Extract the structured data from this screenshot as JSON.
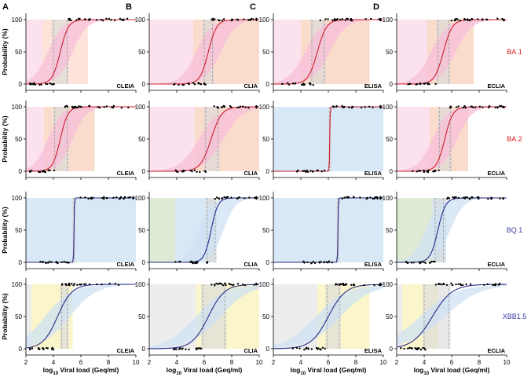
{
  "figure": {
    "y_axis_label": "Probability (%)",
    "x_axis_label_prefix": "log",
    "x_axis_label_sub": "10",
    "x_axis_label_suffix": " Viral load (Geq/ml)",
    "y_ticks": [
      "0",
      "50",
      "100"
    ],
    "x_ticks": [
      "2",
      "4",
      "6",
      "8",
      "10"
    ],
    "columns": [
      {
        "letter": "A"
      },
      {
        "letter": "B"
      },
      {
        "letter": "C"
      },
      {
        "letter": "D"
      }
    ],
    "rows": [
      {
        "variant": "BA.1",
        "color": "#d7191c",
        "curve_color": "#cc1f2f"
      },
      {
        "variant": "BA.2",
        "color": "#d7191c",
        "curve_color": "#cc1f2f"
      },
      {
        "variant": "BQ.1",
        "color": "#3a3aa3",
        "curve_color": "#2a2a8a"
      },
      {
        "variant": "XBB1.5",
        "color": "#3a3aa3",
        "curve_color": "#2a2a8a"
      }
    ]
  },
  "chart_data": {
    "type": "scatter",
    "title": "",
    "xlabel": "log10 Viral load (Geq/ml)",
    "ylabel": "Probability (%)",
    "xlim": [
      2,
      10
    ],
    "ylim": [
      0,
      100
    ],
    "panels": [
      {
        "row": 0,
        "col": 0,
        "assay": "CLEIA",
        "mid": 4.5,
        "slope": 3.4,
        "ci_lo": 4.0,
        "ci_hi": 5.0,
        "band_lo": 3.2,
        "band_hi": 6.5,
        "upper_fill": "#fde0d5",
        "lower_fill": "#fbd9ea",
        "ribbon": "#f7bfd8"
      },
      {
        "row": 0,
        "col": 1,
        "assay": "CLIA",
        "mid": 6.3,
        "slope": 3.3,
        "ci_lo": 6.0,
        "ci_hi": 6.6,
        "band_lo": 5.2,
        "band_hi": 10,
        "upper_fill": "#fad8c8",
        "lower_fill": "#fbd9ea",
        "ribbon": "#f7bfd8"
      },
      {
        "row": 0,
        "col": 2,
        "assay": "ELISA",
        "mid": 5.2,
        "slope": 3.0,
        "ci_lo": 4.8,
        "ci_hi": 5.7,
        "band_lo": 4.0,
        "band_hi": 9.0,
        "upper_fill": "#fad8c8",
        "lower_fill": "#fbd9ea",
        "ribbon": "#f7bfd8"
      },
      {
        "row": 0,
        "col": 3,
        "assay": "ECLIA",
        "mid": 5.4,
        "slope": 3.1,
        "ci_lo": 5.0,
        "ci_hi": 5.8,
        "band_lo": 4.2,
        "band_hi": 7.6,
        "upper_fill": "#fad8c8",
        "lower_fill": "#fbd9ea",
        "ribbon": "#f7bfd8"
      },
      {
        "row": 1,
        "col": 0,
        "assay": "CLEIA",
        "mid": 4.5,
        "slope": 3.6,
        "ci_lo": 4.1,
        "ci_hi": 5.0,
        "band_lo": 3.3,
        "band_hi": 7.0,
        "upper_fill": "#fad8c8",
        "lower_fill": "#fbd9ea",
        "ribbon": "#f7bfd8"
      },
      {
        "row": 1,
        "col": 1,
        "assay": "CLIA",
        "mid": 6.5,
        "slope": 2.6,
        "ci_lo": 6.1,
        "ci_hi": 7.0,
        "band_lo": 5.3,
        "band_hi": 10,
        "upper_fill": "#fad8c8",
        "lower_fill": "#fbd9ea",
        "ribbon": "#f7bfd8"
      },
      {
        "row": 1,
        "col": 2,
        "assay": "ELISA",
        "mid": 6.1,
        "slope": 60,
        "ci_lo": 6.1,
        "ci_hi": 6.1,
        "band_lo": 2,
        "band_hi": 10,
        "upper_fill": "#d4e5f5",
        "lower_fill": "#d6e5c9",
        "ribbon": "none"
      },
      {
        "row": 1,
        "col": 3,
        "assay": "ECLIA",
        "mid": 5.5,
        "slope": 3.4,
        "ci_lo": 5.1,
        "ci_hi": 5.9,
        "band_lo": 4.4,
        "band_hi": 7.2,
        "upper_fill": "#fad8c8",
        "lower_fill": "#fbd9ea",
        "ribbon": "#f7bfd8"
      },
      {
        "row": 2,
        "col": 0,
        "assay": "CLEIA",
        "mid": 5.5,
        "slope": 60,
        "ci_lo": 5.5,
        "ci_hi": 5.5,
        "band_lo": 2,
        "band_hi": 10,
        "upper_fill": "#d4e5f5",
        "lower_fill": "#d6e5c9",
        "ribbon": "none"
      },
      {
        "row": 2,
        "col": 1,
        "assay": "CLIA",
        "mid": 6.5,
        "slope": 4.0,
        "ci_lo": 6.2,
        "ci_hi": 6.8,
        "band_lo": 3.9,
        "band_hi": 6.8,
        "upper_fill": "#d4e5f5",
        "lower_fill": "#d6e5c9",
        "ribbon": "#cfe2f3"
      },
      {
        "row": 2,
        "col": 2,
        "assay": "ELISA",
        "mid": 6.7,
        "slope": 60,
        "ci_lo": 6.7,
        "ci_hi": 6.7,
        "band_lo": 2,
        "band_hi": 10,
        "upper_fill": "#d4e5f5",
        "lower_fill": "#d6e5c9",
        "ribbon": "none"
      },
      {
        "row": 2,
        "col": 3,
        "assay": "ECLIA",
        "mid": 5.0,
        "slope": 3.6,
        "ci_lo": 4.8,
        "ci_hi": 5.4,
        "band_lo": 4.6,
        "band_hi": 5.6,
        "upper_fill": "#d4e5f5",
        "lower_fill": "#d6e5c9",
        "ribbon": "#cfe2f3"
      },
      {
        "row": 3,
        "col": 0,
        "assay": "CLEIA",
        "mid": 4.3,
        "slope": 1.9,
        "ci_lo": 4.6,
        "ci_hi": 5.0,
        "band_lo": 2.4,
        "band_hi": 5.4,
        "upper_fill": "#fbf4c6",
        "lower_fill": "#e8e8e8",
        "ribbon": "#cfe2f3"
      },
      {
        "row": 3,
        "col": 1,
        "assay": "CLIA",
        "mid": 6.3,
        "slope": 1.7,
        "ci_lo": 5.9,
        "ci_hi": 7.5,
        "band_lo": 5.4,
        "band_hi": 10,
        "upper_fill": "#fbf4c6",
        "lower_fill": "#e8e8e8",
        "ribbon": "#cfe2f3"
      },
      {
        "row": 3,
        "col": 2,
        "assay": "ELISA",
        "mid": 6.0,
        "slope": 1.6,
        "ci_lo": 5.9,
        "ci_hi": 6.8,
        "band_lo": 5.2,
        "band_hi": 9.0,
        "upper_fill": "#fbf4c6",
        "lower_fill": "#e8e8e8",
        "ribbon": "#cfe2f3"
      },
      {
        "row": 3,
        "col": 3,
        "assay": "ECLIA",
        "mid": 4.6,
        "slope": 1.4,
        "ci_lo": 4.0,
        "ci_hi": 5.8,
        "band_lo": 2.4,
        "band_hi": 5.0,
        "upper_fill": "#fbf4c6",
        "lower_fill": "#e8e8e8",
        "ribbon": "#cfe2f3"
      }
    ]
  }
}
